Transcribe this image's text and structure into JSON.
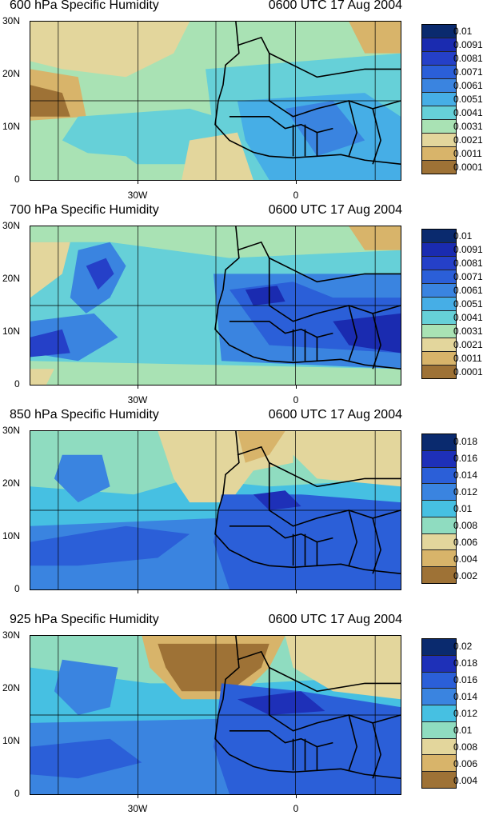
{
  "panels": [
    {
      "title": "600 hPa Specific Humidity",
      "time": "0600 UTC 17 Aug 2004",
      "legend": [
        "0.01",
        "0.0091",
        "0.0081",
        "0.0071",
        "0.0061",
        "0.0051",
        "0.0041",
        "0.0031",
        "0.0021",
        "0.0011",
        "0.0001"
      ],
      "y_labels": [
        "30N",
        "20N",
        "10N",
        "0"
      ],
      "x_labels": [
        "30W",
        "0"
      ]
    },
    {
      "title": "700 hPa Specific Humidity",
      "time": "0600 UTC 17 Aug 2004",
      "legend": [
        "0.01",
        "0.0091",
        "0.0081",
        "0.0071",
        "0.0061",
        "0.0051",
        "0.0041",
        "0.0031",
        "0.0021",
        "0.0011",
        "0.0001"
      ],
      "y_labels": [
        "30N",
        "20N",
        "10N",
        "0"
      ],
      "x_labels": [
        "30W",
        "0"
      ]
    },
    {
      "title": "850 hPa Specific Humidity",
      "time": "0600 UTC 17 Aug 2004",
      "legend": [
        "0.018",
        "0.016",
        "0.014",
        "0.012",
        "0.01",
        "0.008",
        "0.006",
        "0.004",
        "0.002"
      ],
      "y_labels": [
        "30N",
        "20N",
        "10N",
        "0"
      ],
      "x_labels": [
        "30W",
        "0"
      ]
    },
    {
      "title": "925 hPa Specific Humidity",
      "time": "0600 UTC 17 Aug 2004",
      "legend": [
        "0.02",
        "0.018",
        "0.016",
        "0.014",
        "0.012",
        "0.01",
        "0.008",
        "0.006",
        "0.004"
      ],
      "y_labels": [
        "30N",
        "20N",
        "10N",
        "0"
      ],
      "x_labels": [
        "30W",
        "0"
      ]
    }
  ],
  "colors": {
    "scale11": [
      "#0a2a6e",
      "#1a2bb0",
      "#2540c8",
      "#2b5fd8",
      "#3a84e0",
      "#46aee6",
      "#66d0d8",
      "#a9e2b4",
      "#e3d69c",
      "#d8b46a",
      "#9e7236"
    ],
    "scale9": [
      "#0a2a6e",
      "#1e30b8",
      "#2b5fd8",
      "#3a84e0",
      "#46c0e2",
      "#8fdcc0",
      "#e3d69c",
      "#d8b46a",
      "#9e7236"
    ]
  }
}
